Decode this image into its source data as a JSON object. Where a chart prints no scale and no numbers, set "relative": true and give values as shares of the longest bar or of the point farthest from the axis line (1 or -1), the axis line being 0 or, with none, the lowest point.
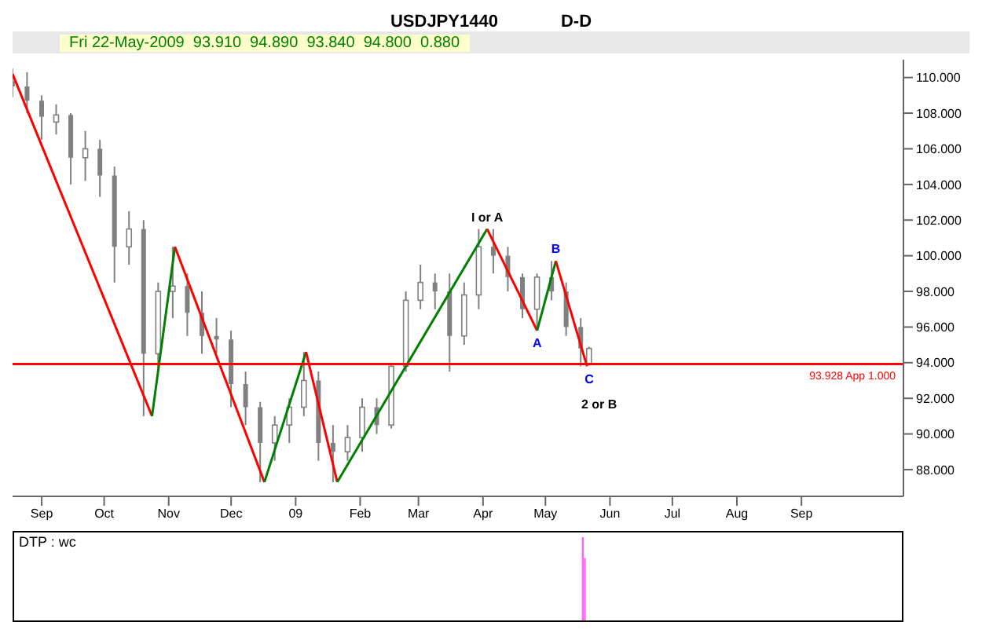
{
  "chart_data": [
    {
      "type": "candlestick",
      "title": "USDJPY1440",
      "subtitle": "D-D",
      "annotations": [
        "Fri 22-May-2009  93.910  94.890  93.840  94.800  0.880",
        {
          "text": "I or A",
          "x": "2009-04-03",
          "y": 101.5
        },
        {
          "text": "A",
          "x": "2009-04-27",
          "y": 95.8
        },
        {
          "text": "B",
          "x": "2009-05-06",
          "y": 99.7
        },
        {
          "text": "C",
          "x": "2009-05-22",
          "y": 93.8
        },
        "2 or B"
      ],
      "x": [
        "2008-08-18",
        "2008-08-25",
        "2008-09-01",
        "2008-09-08",
        "2008-09-15",
        "2008-09-22",
        "2008-09-29",
        "2008-10-06",
        "2008-10-13",
        "2008-10-20",
        "2008-10-27",
        "2008-11-03",
        "2008-11-10",
        "2008-11-17",
        "2008-11-24",
        "2008-12-01",
        "2008-12-08",
        "2008-12-15",
        "2008-12-22",
        "2008-12-29",
        "2009-01-05",
        "2009-01-12",
        "2009-01-19",
        "2009-01-26",
        "2009-02-02",
        "2009-02-09",
        "2009-02-16",
        "2009-02-23",
        "2009-03-02",
        "2009-03-09",
        "2009-03-16",
        "2009-03-23",
        "2009-03-30",
        "2009-04-06",
        "2009-04-13",
        "2009-04-20",
        "2009-04-27",
        "2009-05-04",
        "2009-05-11",
        "2009-05-18",
        "2009-05-22"
      ],
      "ohlc": [
        [
          109.8,
          110.5,
          108.9,
          109.5
        ],
        [
          109.5,
          110.3,
          108.0,
          108.7
        ],
        [
          108.7,
          109.0,
          106.5,
          107.8
        ],
        [
          107.5,
          108.5,
          106.8,
          107.9
        ],
        [
          107.9,
          108.0,
          104.0,
          105.5
        ],
        [
          105.5,
          107.0,
          104.2,
          106.0
        ],
        [
          106.0,
          106.5,
          103.3,
          104.5
        ],
        [
          104.5,
          105.0,
          98.5,
          100.5
        ],
        [
          100.5,
          102.5,
          99.5,
          101.5
        ],
        [
          101.5,
          102.0,
          91.0,
          94.5
        ],
        [
          94.5,
          98.5,
          93.5,
          98.0
        ],
        [
          98.0,
          100.5,
          96.5,
          98.3
        ],
        [
          98.3,
          99.0,
          95.5,
          96.8
        ],
        [
          96.8,
          98.0,
          94.5,
          95.5
        ],
        [
          95.5,
          96.5,
          94.5,
          95.3
        ],
        [
          95.3,
          95.8,
          91.5,
          92.8
        ],
        [
          92.8,
          93.5,
          90.5,
          91.5
        ],
        [
          91.5,
          91.8,
          87.3,
          89.5
        ],
        [
          89.5,
          91.0,
          88.5,
          90.5
        ],
        [
          90.5,
          92.0,
          89.5,
          91.5
        ],
        [
          91.5,
          94.6,
          91.0,
          93.0
        ],
        [
          93.0,
          93.5,
          88.5,
          89.5
        ],
        [
          89.5,
          90.5,
          87.3,
          89.0
        ],
        [
          89.0,
          90.5,
          88.5,
          89.8
        ],
        [
          89.8,
          92.0,
          89.0,
          91.5
        ],
        [
          91.5,
          92.0,
          90.0,
          90.5
        ],
        [
          90.5,
          94.0,
          90.3,
          93.8
        ],
        [
          93.8,
          98.0,
          93.5,
          97.5
        ],
        [
          97.5,
          99.5,
          97.0,
          98.5
        ],
        [
          98.5,
          99.0,
          97.0,
          98.0
        ],
        [
          98.0,
          99.0,
          93.5,
          95.5
        ],
        [
          95.5,
          98.5,
          95.0,
          97.8
        ],
        [
          97.8,
          101.5,
          97.0,
          100.5
        ],
        [
          100.5,
          101.5,
          99.0,
          100.0
        ],
        [
          100.0,
          100.5,
          98.0,
          98.8
        ],
        [
          98.8,
          99.0,
          96.5,
          97.0
        ],
        [
          97.0,
          99.0,
          95.8,
          98.8
        ],
        [
          98.8,
          99.7,
          97.5,
          98.0
        ],
        [
          98.0,
          98.5,
          95.5,
          96.0
        ],
        [
          96.0,
          96.5,
          93.8,
          94.8
        ],
        [
          93.91,
          94.89,
          93.84,
          94.8
        ]
      ],
      "color": "#808080",
      "series": [
        {
          "type": "line",
          "color": "#ff0000",
          "x": [
            "2008-08-18",
            "2008-10-24"
          ],
          "values": [
            110.2,
            91.0
          ]
        },
        {
          "type": "line",
          "color": "#008000",
          "x": [
            "2008-10-24",
            "2008-11-04"
          ],
          "values": [
            91.0,
            100.5
          ]
        },
        {
          "type": "line",
          "color": "#ff0000",
          "x": [
            "2008-11-04",
            "2008-12-17"
          ],
          "values": [
            100.5,
            87.3
          ]
        },
        {
          "type": "line",
          "color": "#008000",
          "x": [
            "2008-12-17",
            "2009-01-06"
          ],
          "values": [
            87.3,
            94.6
          ]
        },
        {
          "type": "line",
          "color": "#ff0000",
          "x": [
            "2009-01-06",
            "2009-01-21"
          ],
          "values": [
            94.6,
            87.3
          ]
        },
        {
          "type": "line",
          "color": "#008000",
          "x": [
            "2009-01-21",
            "2009-04-03"
          ],
          "values": [
            87.3,
            101.5
          ]
        },
        {
          "type": "line",
          "color": "#ff0000",
          "x": [
            "2009-04-03",
            "2009-04-27"
          ],
          "values": [
            101.5,
            95.8
          ]
        },
        {
          "type": "line",
          "color": "#008000",
          "x": [
            "2009-04-27",
            "2009-05-06"
          ],
          "values": [
            95.8,
            99.7
          ]
        },
        {
          "type": "line",
          "color": "#ff0000",
          "x": [
            "2009-05-06",
            "2009-05-21"
          ],
          "values": [
            99.7,
            93.8
          ]
        }
      ],
      "ref_lines": [
        {
          "axis": "y",
          "value": 93.928,
          "label": "93.928 App 1.000",
          "color": "#ff0000"
        }
      ],
      "xlim": [
        "2008-08-18",
        "2009-10-20"
      ],
      "xticks": [
        {
          "value": "2008-09-01",
          "label": "Sep"
        },
        {
          "value": "2008-10-01",
          "label": "Oct"
        },
        {
          "value": "2008-11-01",
          "label": "Nov"
        },
        {
          "value": "2008-12-01",
          "label": "Dec"
        },
        {
          "value": "2009-01-01",
          "label": "09"
        },
        {
          "value": "2009-02-01",
          "label": "Feb"
        },
        {
          "value": "2009-03-01",
          "label": "Mar"
        },
        {
          "value": "2009-04-01",
          "label": "Apr"
        },
        {
          "value": "2009-05-01",
          "label": "May"
        },
        {
          "value": "2009-06-01",
          "label": "Jun"
        },
        {
          "value": "2009-07-01",
          "label": "Jul"
        },
        {
          "value": "2009-08-01",
          "label": "Aug"
        },
        {
          "value": "2009-09-01",
          "label": "Sep"
        }
      ],
      "ylim": [
        86.5,
        111
      ],
      "yticks": [
        {
          "value": 88,
          "label": "88.000"
        },
        {
          "value": 90,
          "label": "90.000"
        },
        {
          "value": 92,
          "label": "92.000"
        },
        {
          "value": 94,
          "label": "94.000"
        },
        {
          "value": 96,
          "label": "96.000"
        },
        {
          "value": 98,
          "label": "98.000"
        },
        {
          "value": 100,
          "label": "100.000"
        },
        {
          "value": 102,
          "label": "102.000"
        },
        {
          "value": 104,
          "label": "104.000"
        },
        {
          "value": 106,
          "label": "106.000"
        },
        {
          "value": 108,
          "label": "108.000"
        },
        {
          "value": 110,
          "label": "110.000"
        }
      ],
      "grid": false
    },
    {
      "type": "bar",
      "title": "DTP : wc",
      "relative": true,
      "x": [
        "2009-05-19",
        "2009-05-20"
      ],
      "values": [
        1,
        0.75
      ],
      "color": "#ff66ff",
      "xlim": [
        "2008-08-18",
        "2009-10-20"
      ],
      "tick_labels": false
    }
  ]
}
